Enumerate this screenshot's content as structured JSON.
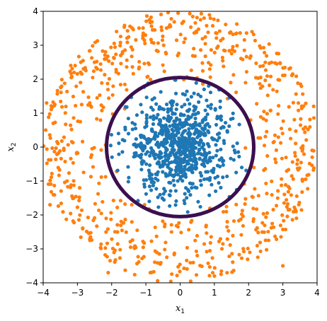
{
  "chart_data": {
    "type": "scatter",
    "title": "",
    "xlabel": "x",
    "xlabel_sub": "1",
    "ylabel": "x",
    "ylabel_sub": "2",
    "xlim": [
      -4,
      4
    ],
    "ylim": [
      -4,
      4
    ],
    "x_ticks": [
      -4,
      -3,
      -2,
      -1,
      0,
      1,
      2,
      3,
      4
    ],
    "y_ticks": [
      -4,
      -3,
      -2,
      -1,
      0,
      1,
      2,
      3,
      4
    ],
    "grid": false,
    "legend": "none",
    "series": [
      {
        "color": "#1f77b4",
        "distribution": "inner cluster, radius 0 to ~2.1, denser near the origin",
        "approx_count": 750,
        "points": [
          [
            0.0,
            0.1
          ],
          [
            -0.2,
            0.3
          ],
          [
            0.4,
            -0.2
          ],
          [
            -0.5,
            -0.5
          ],
          [
            1.2,
            0.8
          ],
          [
            -1.5,
            -0.9
          ],
          [
            0.7,
            1.7
          ],
          [
            -0.9,
            -1.6
          ],
          [
            1.8,
            -0.6
          ],
          [
            -1.8,
            0.4
          ]
        ]
      },
      {
        "color": "#ff7f0e",
        "distribution": "outer ring, radius ~1.8 to ~4.0",
        "approx_count": 750,
        "points": [
          [
            0.1,
            3.7
          ],
          [
            -0.3,
            3.6
          ],
          [
            0.7,
            3.8
          ],
          [
            3.9,
            1.2
          ],
          [
            -3.9,
            1.3
          ],
          [
            -3.8,
            -1.7
          ],
          [
            3.0,
            -3.5
          ],
          [
            -2.1,
            -3.7
          ],
          [
            2.1,
            3.4
          ],
          [
            -2.9,
            2.5
          ]
        ]
      }
    ],
    "boundary": {
      "shape": "circle",
      "center": [
        0.0,
        0.0
      ],
      "radius_x": 2.15,
      "radius_y": 2.05,
      "color": "#3b0f4f"
    }
  }
}
